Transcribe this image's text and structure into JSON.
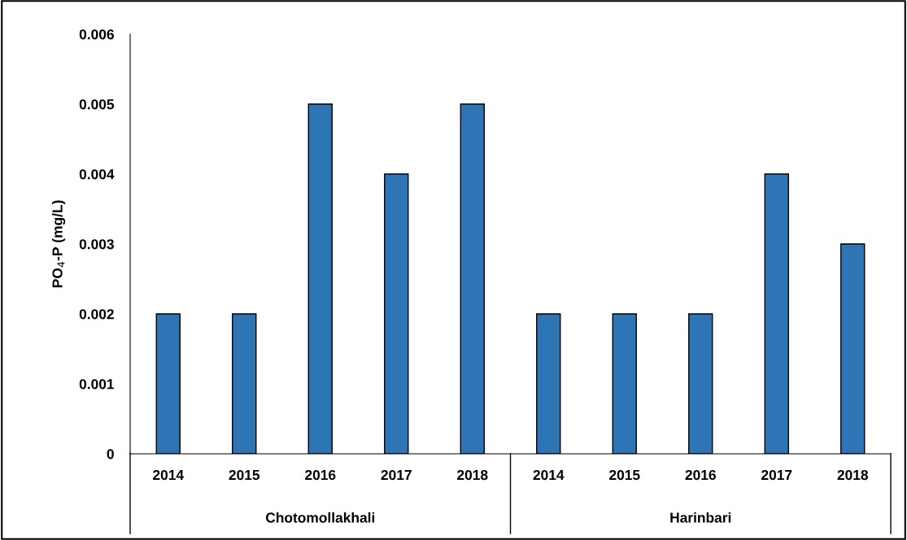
{
  "chart_data": {
    "type": "bar",
    "ylabel": "PO$_{4}$-P (mg/L)",
    "categories": [
      "2014",
      "2015",
      "2016",
      "2017",
      "2018",
      "2014",
      "2015",
      "2016",
      "2017",
      "2018"
    ],
    "values": [
      0.002,
      0.002,
      0.005,
      0.004,
      0.005,
      0.002,
      0.002,
      0.002,
      0.004,
      0.003
    ],
    "color": "#2e75b6",
    "ylim": [
      0,
      0.006
    ],
    "yticks": [
      0,
      0.001,
      0.002,
      0.003,
      0.004,
      0.005,
      0.006
    ],
    "grid": false,
    "legend": false,
    "annotations": [
      "Chotomollakhali",
      "Harinbari"
    ]
  }
}
